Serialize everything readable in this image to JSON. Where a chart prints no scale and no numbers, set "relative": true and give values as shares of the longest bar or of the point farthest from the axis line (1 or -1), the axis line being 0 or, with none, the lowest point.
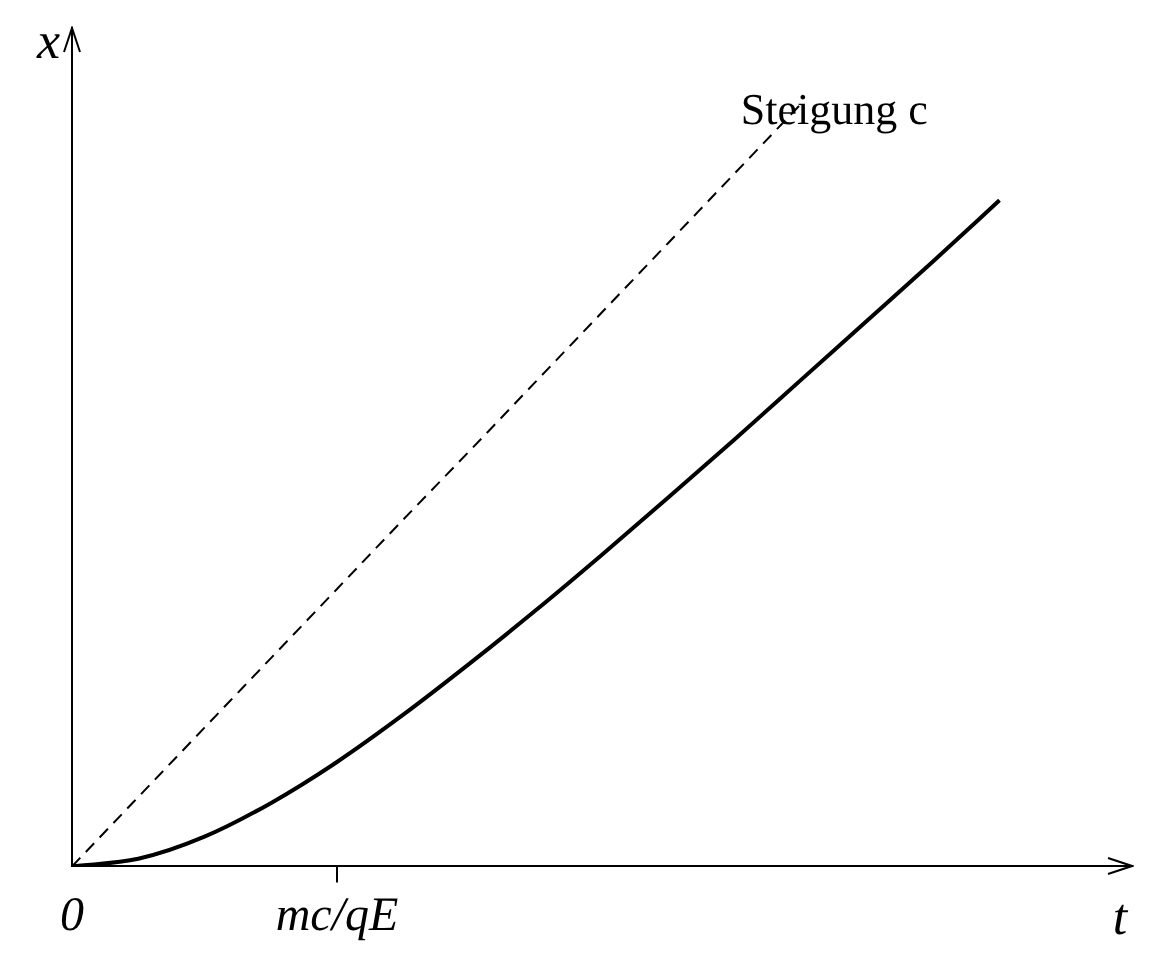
{
  "chart_data": {
    "type": "line",
    "relative": true,
    "xlabel": "t",
    "ylabel": "x",
    "grid": false,
    "legend": false,
    "marker": "none",
    "categories": [
      "0",
      null,
      null,
      null,
      "mc/qE",
      null,
      null,
      null,
      null,
      null,
      null,
      null,
      null,
      null,
      null,
      null,
      null
    ],
    "series": [
      {
        "name": "Steigung c",
        "color": "#000000",
        "line_style": "dashed",
        "values": [
          0,
          0.091,
          0.182,
          0.273,
          0.364,
          0.455,
          0.545,
          0.636,
          0.727,
          0.818,
          0.909,
          1,
          null,
          null,
          null,
          null,
          null
        ]
      },
      {
        "color": "#000000",
        "line_style": "solid",
        "values": [
          0,
          0.01,
          0.039,
          0.083,
          0.137,
          0.199,
          0.266,
          0.336,
          0.409,
          0.484,
          0.56,
          0.638,
          0.716,
          0.794,
          0.874,
          null,
          null
        ]
      }
    ]
  }
}
